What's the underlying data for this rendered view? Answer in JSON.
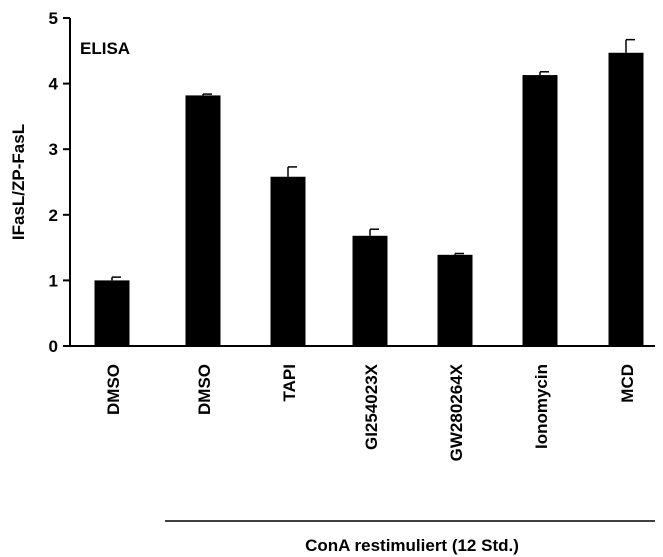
{
  "chart_data": {
    "type": "bar",
    "annotation": "ELISA",
    "ylabel": "IFasL/ZP-FasL",
    "group_label": "ConA restimuliert (12 Std.)",
    "categories": [
      "DMSO",
      "DMSO",
      "TAPI",
      "GI254023X",
      "GW280264X",
      "Ionomycin",
      "MCD"
    ],
    "values": [
      1.0,
      3.82,
      2.58,
      1.68,
      1.39,
      4.13,
      4.47
    ],
    "errors": [
      0.05,
      0.02,
      0.15,
      0.1,
      0.02,
      0.05,
      0.2
    ],
    "color": "#000000",
    "ylim": [
      0,
      5
    ],
    "yticks": [
      0,
      1,
      2,
      3,
      4,
      5
    ],
    "grid": false
  }
}
